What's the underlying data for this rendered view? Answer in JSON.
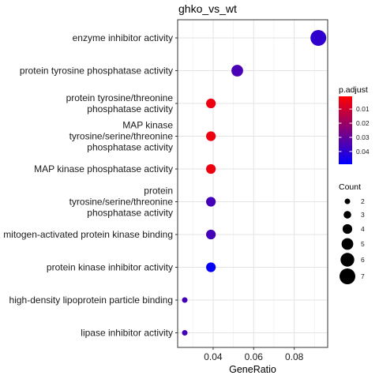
{
  "chart_data": {
    "type": "scatter",
    "title": "ghko_vs_wt",
    "xlabel": "GeneRatio",
    "ylabel": "",
    "xlim": [
      0.0225,
      0.0965
    ],
    "x_ticks": [
      0.04,
      0.06,
      0.08
    ],
    "x_tick_labels": [
      "0.04",
      "0.06",
      "0.08"
    ],
    "grid": true,
    "categories": [
      {
        "label": [
          "enzyme inhibitor activity"
        ],
        "gene_ratio": 0.0919,
        "p_adjust": 0.04,
        "count": 7
      },
      {
        "label": [
          "protein tyrosine phosphatase activity"
        ],
        "gene_ratio": 0.0519,
        "p_adjust": 0.035,
        "count": 5
      },
      {
        "label": [
          "protein tyrosine/threonine",
          "phosphatase activity"
        ],
        "gene_ratio": 0.0389,
        "p_adjust": 0.004,
        "count": 4
      },
      {
        "label": [
          "MAP kinase",
          "tyrosine/serine/threonine",
          "phosphatase activity"
        ],
        "gene_ratio": 0.0389,
        "p_adjust": 0.004,
        "count": 4
      },
      {
        "label": [
          "MAP kinase phosphatase activity"
        ],
        "gene_ratio": 0.0389,
        "p_adjust": 0.004,
        "count": 4
      },
      {
        "label": [
          "protein",
          "tyrosine/serine/threonine",
          "phosphatase activity"
        ],
        "gene_ratio": 0.0389,
        "p_adjust": 0.036,
        "count": 4
      },
      {
        "label": [
          "mitogen-activated protein kinase binding"
        ],
        "gene_ratio": 0.0389,
        "p_adjust": 0.036,
        "count": 4
      },
      {
        "label": [
          "protein kinase inhibitor activity"
        ],
        "gene_ratio": 0.0389,
        "p_adjust": 0.048,
        "count": 4
      },
      {
        "label": [
          "high-density lipoprotein particle binding"
        ],
        "gene_ratio": 0.026,
        "p_adjust": 0.036,
        "count": 2
      },
      {
        "label": [
          "lipase inhibitor activity"
        ],
        "gene_ratio": 0.026,
        "p_adjust": 0.036,
        "count": 2
      }
    ],
    "color_legend": {
      "title": "p.adjust",
      "range": [
        0.001,
        0.049
      ],
      "ticks": [
        0.01,
        0.02,
        0.03,
        0.04
      ],
      "tick_labels": [
        "0.01",
        "0.02",
        "0.03",
        "0.04"
      ],
      "low_color": "#ff0000",
      "high_color": "#0000ff"
    },
    "size_legend": {
      "title": "Count",
      "values": [
        2,
        3,
        4,
        5,
        6,
        7
      ],
      "labels": [
        "2",
        "3",
        "4",
        "5",
        "6",
        "7"
      ]
    },
    "legend_position": "right"
  }
}
